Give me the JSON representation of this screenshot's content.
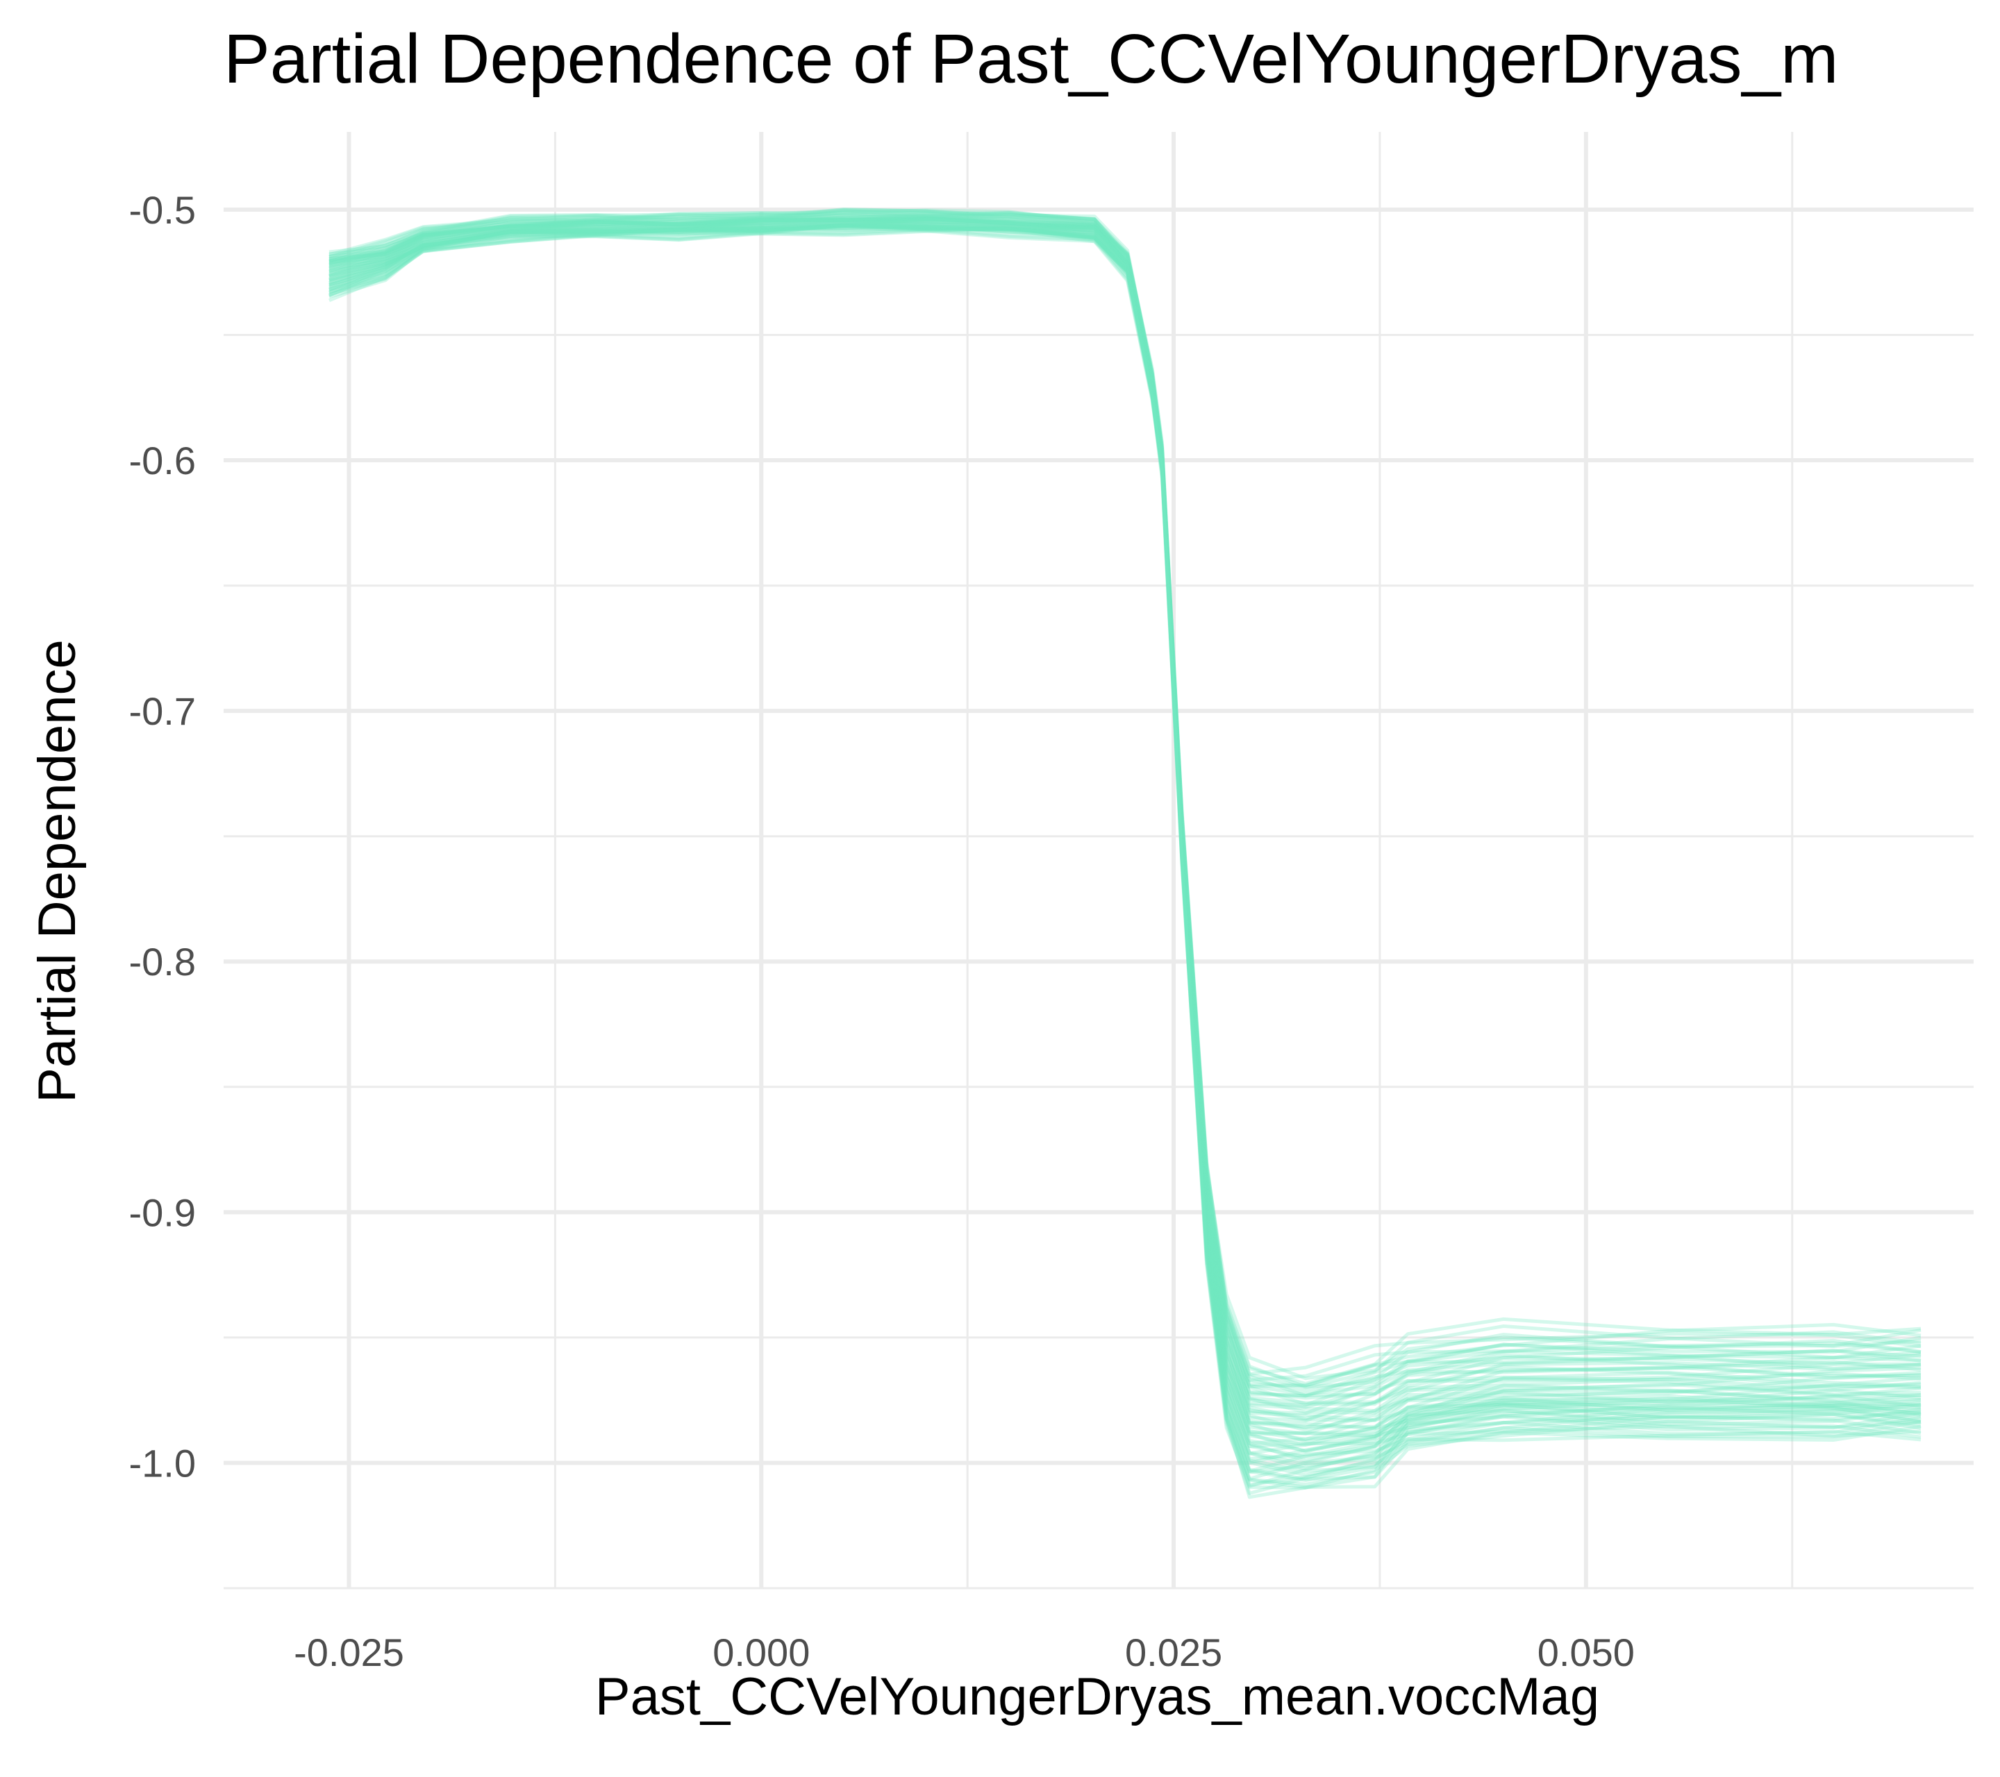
{
  "chart_data": {
    "type": "line",
    "title": "Partial Dependence of Past_CCVelYoungerDryas_m",
    "xlabel": "Past_CCVelYoungerDryas_mean.voccMag",
    "ylabel": "Partial Dependence",
    "xlim": [
      -0.0326,
      0.0735
    ],
    "ylim": [
      -1.05,
      -0.469
    ],
    "x_ticks": [
      -0.025,
      0.0,
      0.025,
      0.05
    ],
    "x_tick_labels": [
      "-0.025",
      "0.000",
      "0.025",
      "0.050"
    ],
    "y_ticks": [
      -0.5,
      -0.6,
      -0.7,
      -0.8,
      -0.9,
      -1.0
    ],
    "y_tick_labels": [
      "-0.5",
      "-0.6",
      "-0.7",
      "-0.8",
      "-0.9",
      "-1.0"
    ],
    "grid": true,
    "legend": "none",
    "line_color": "#6fe8c0",
    "line_opacity": 0.3,
    "n_lines": 60,
    "x": [
      -0.0262,
      -0.0228,
      -0.0205,
      -0.0152,
      -0.01,
      -0.005,
      0.0,
      0.005,
      0.01,
      0.015,
      0.0202,
      0.0222,
      0.0237,
      0.0243,
      0.0255,
      0.027,
      0.0282,
      0.0296,
      0.033,
      0.0372,
      0.0392,
      0.045,
      0.055,
      0.065,
      0.0703
    ],
    "series": [
      {
        "values": [
          -0.525,
          -0.52,
          -0.513,
          -0.508,
          -0.507,
          -0.507,
          -0.506,
          -0.505,
          -0.505,
          -0.506,
          -0.508,
          -0.522,
          -0.57,
          -0.6,
          -0.75,
          -0.9,
          -0.96,
          -0.985,
          -0.988,
          -0.985,
          -0.978,
          -0.972,
          -0.972,
          -0.972,
          -0.972
        ]
      },
      {
        "values": [
          -0.535,
          -0.527,
          -0.516,
          -0.511,
          -0.51,
          -0.51,
          -0.509,
          -0.508,
          -0.508,
          -0.509,
          -0.512,
          -0.526,
          -0.575,
          -0.605,
          -0.76,
          -0.92,
          -0.985,
          -1.012,
          -1.01,
          -1.005,
          -0.992,
          -0.988,
          -0.988,
          -0.988,
          -0.988
        ]
      },
      {
        "values": [
          -0.518,
          -0.514,
          -0.508,
          -0.504,
          -0.503,
          -0.503,
          -0.502,
          -0.501,
          -0.501,
          -0.502,
          -0.504,
          -0.518,
          -0.565,
          -0.595,
          -0.74,
          -0.88,
          -0.935,
          -0.962,
          -0.965,
          -0.958,
          -0.952,
          -0.948,
          -0.948,
          -0.948,
          -0.948
        ]
      }
    ]
  }
}
